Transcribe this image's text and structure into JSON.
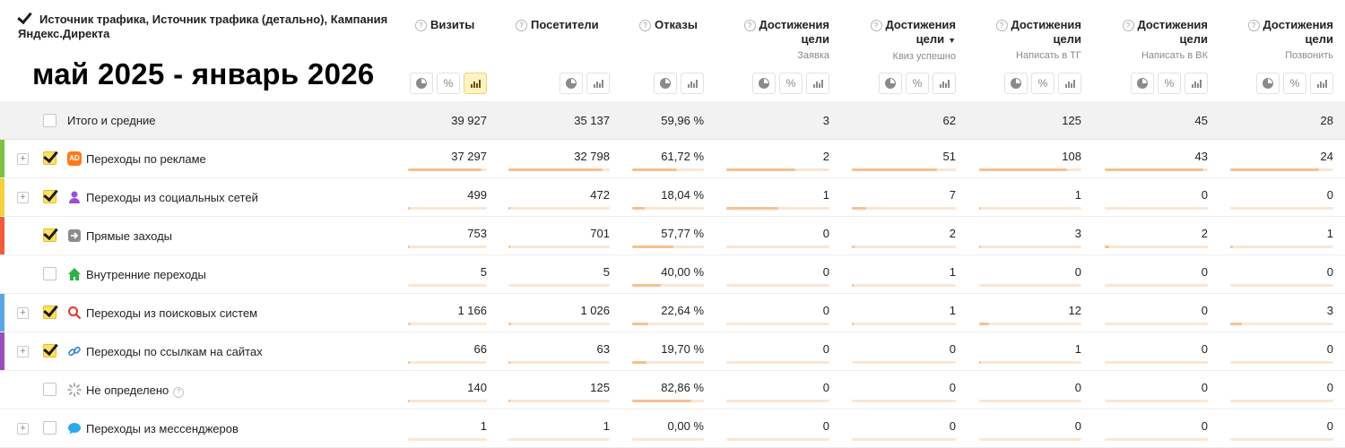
{
  "overlay_title": "май 2025 - январь 2026",
  "dimension_header": "Источник трафика, Источник трафика (детально), Кампания Яндекс.Директа",
  "columns": [
    {
      "title": "Визиты",
      "sub": ""
    },
    {
      "title": "Посетители",
      "sub": ""
    },
    {
      "title": "Отказы",
      "sub": ""
    },
    {
      "title": "Достижения цели",
      "sub": "Заявка"
    },
    {
      "title": "Достижения цели",
      "sub": "Квиз успешно",
      "sorted": true
    },
    {
      "title": "Достижения цели",
      "sub": "Написать в ТГ"
    },
    {
      "title": "Достижения цели",
      "sub": "Написать в ВК"
    },
    {
      "title": "Достижения цели",
      "sub": "Позвонить"
    }
  ],
  "icons": {
    "help": "?",
    "percent": "%",
    "sort": "▼",
    "expand": "+"
  },
  "totals": {
    "label": "Итого и средние",
    "values": [
      "39 927",
      "35 137",
      "59,96 %",
      "3",
      "62",
      "125",
      "45",
      "28"
    ]
  },
  "rows": [
    {
      "label": "Переходы по рекламе",
      "icon": "ad-icon",
      "icon_text": "AD",
      "stripe": "#7dc242",
      "expandable": true,
      "checked": true,
      "values": [
        "37 297",
        "32 798",
        "61,72 %",
        "2",
        "51",
        "108",
        "43",
        "24"
      ],
      "bars": [
        0.93,
        0.93,
        0.62,
        0.67,
        0.82,
        0.86,
        0.96,
        0.86
      ]
    },
    {
      "label": "Переходы из социальных сетей",
      "icon": "social-icon",
      "icon_text": "",
      "stripe": "#f5d23c",
      "expandable": true,
      "checked": true,
      "values": [
        "499",
        "472",
        "18,04 %",
        "1",
        "7",
        "1",
        "0",
        "0"
      ],
      "bars": [
        0.01,
        0.01,
        0.18,
        0.5,
        0.14,
        0.01,
        0,
        0
      ]
    },
    {
      "label": "Прямые заходы",
      "icon": "direct-icon",
      "icon_text": "",
      "stripe": "#f25a3c",
      "expandable": false,
      "checked": true,
      "values": [
        "753",
        "701",
        "57,77 %",
        "0",
        "2",
        "3",
        "2",
        "1"
      ],
      "bars": [
        0.02,
        0.02,
        0.58,
        0,
        0.03,
        0.02,
        0.04,
        0.03
      ]
    },
    {
      "label": "Внутренние переходы",
      "icon": "home-icon",
      "icon_text": "",
      "stripe": "",
      "expandable": false,
      "checked": false,
      "values": [
        "5",
        "5",
        "40,00 %",
        "0",
        "1",
        "0",
        "0",
        "0"
      ],
      "bars": [
        0,
        0,
        0.4,
        0,
        0.02,
        0,
        0,
        0
      ]
    },
    {
      "label": "Переходы из поисковых систем",
      "icon": "search-icon",
      "icon_text": "",
      "stripe": "#5aa7e6",
      "expandable": true,
      "checked": true,
      "values": [
        "1 166",
        "1 026",
        "22,64 %",
        "0",
        "1",
        "12",
        "0",
        "3"
      ],
      "bars": [
        0.03,
        0.03,
        0.23,
        0,
        0.02,
        0.1,
        0,
        0.11
      ]
    },
    {
      "label": "Переходы по ссылкам на сайтах",
      "icon": "link-icon",
      "icon_text": "",
      "stripe": "#9b4fb8",
      "expandable": true,
      "checked": true,
      "values": [
        "66",
        "63",
        "19,70 %",
        "0",
        "0",
        "1",
        "0",
        "0"
      ],
      "bars": [
        0.002,
        0.002,
        0.2,
        0,
        0,
        0.01,
        0,
        0
      ]
    },
    {
      "label": "Не определено",
      "icon": "undefined-icon",
      "icon_text": "",
      "stripe": "",
      "expandable": false,
      "checked": false,
      "help": true,
      "values": [
        "140",
        "125",
        "82,86 %",
        "0",
        "0",
        "0",
        "0",
        "0"
      ],
      "bars": [
        0.004,
        0.004,
        0.83,
        0,
        0,
        0,
        0,
        0
      ]
    },
    {
      "label": "Переходы из мессенджеров",
      "icon": "messenger-icon",
      "icon_text": "",
      "stripe": "",
      "expandable": true,
      "checked": false,
      "values": [
        "1",
        "1",
        "0,00 %",
        "0",
        "0",
        "0",
        "0",
        "0"
      ],
      "bars": [
        0,
        0,
        0,
        0,
        0,
        0,
        0,
        0
      ]
    }
  ]
}
